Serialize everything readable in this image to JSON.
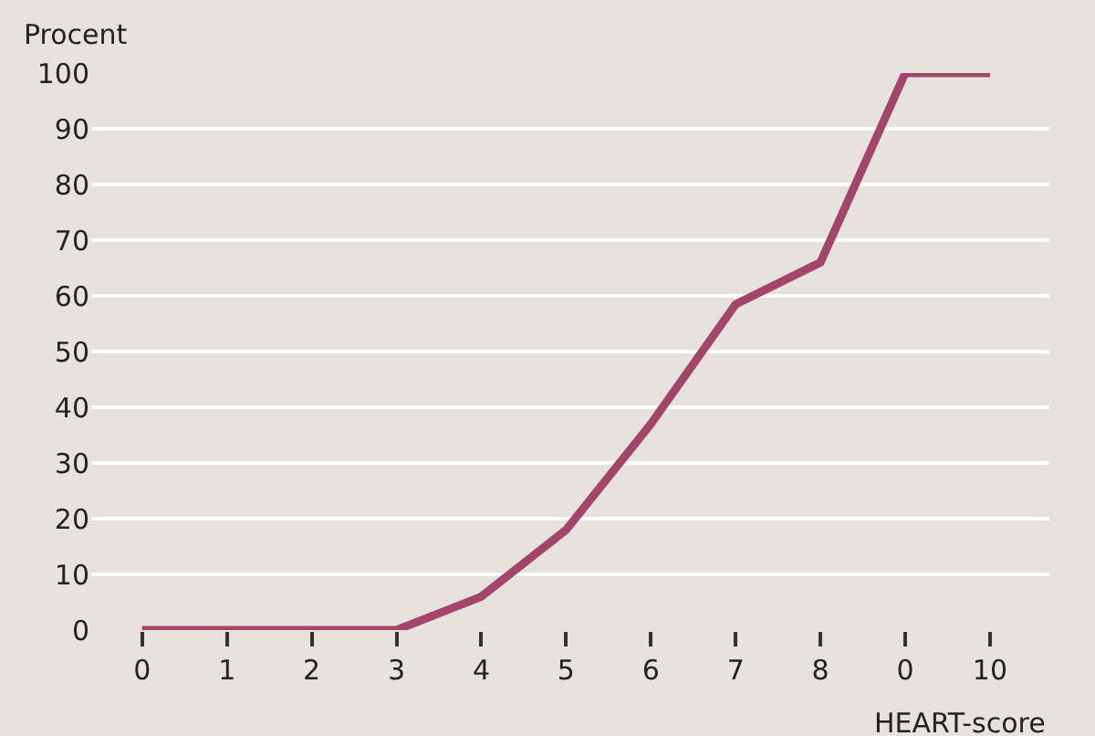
{
  "chart_data": {
    "type": "line",
    "xlabel": "HEART-score",
    "ylabel": "Procent",
    "categories": [
      "0",
      "1",
      "2",
      "3",
      "4",
      "5",
      "6",
      "7",
      "8",
      "0",
      "10"
    ],
    "series": [
      {
        "color": "#a3456b",
        "values": [
          0,
          0,
          0,
          0,
          6,
          18,
          37,
          58.5,
          66,
          100,
          100
        ]
      }
    ],
    "ylim": [
      0,
      100
    ],
    "yticks": [
      0,
      10,
      20,
      30,
      40,
      50,
      60,
      70,
      80,
      90,
      100
    ],
    "grid": "y",
    "legend": false,
    "marker": "none",
    "line_style": "solid"
  }
}
